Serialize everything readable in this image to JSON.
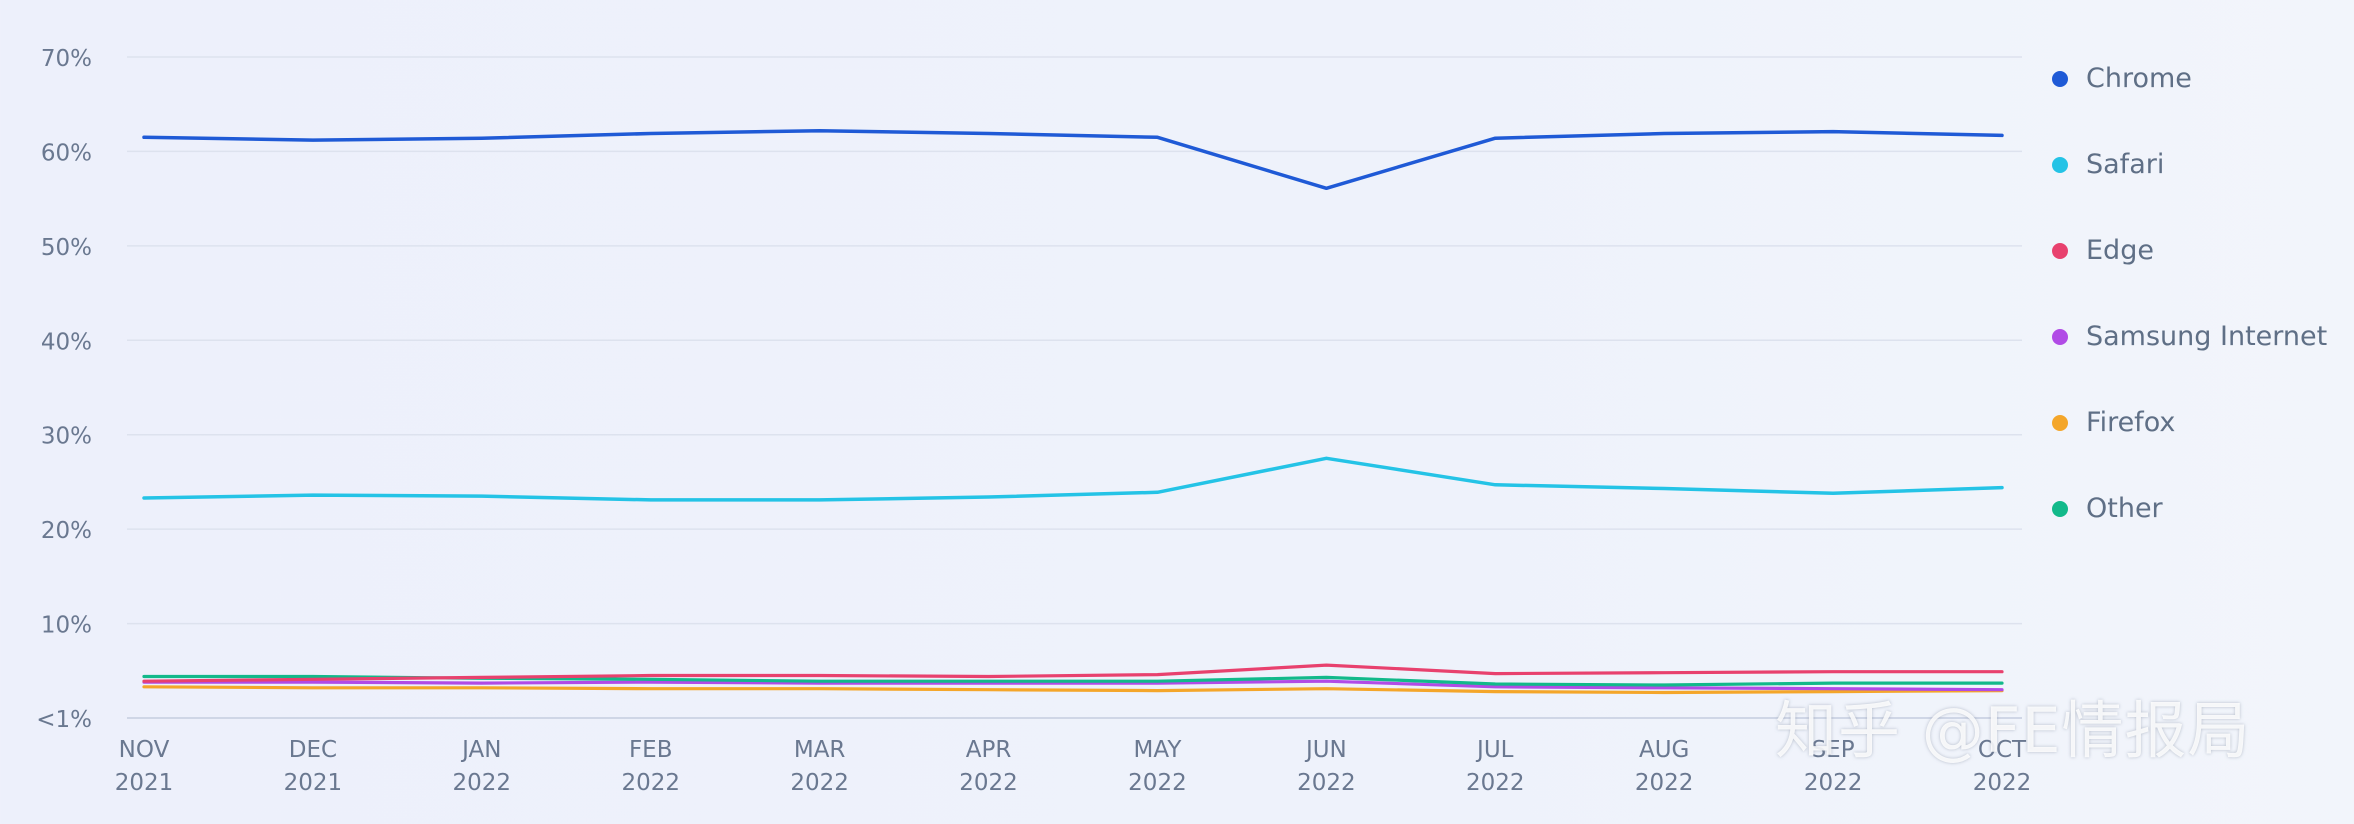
{
  "chart_data": {
    "type": "line",
    "categories": [
      [
        "NOV",
        "2021"
      ],
      [
        "DEC",
        "2021"
      ],
      [
        "JAN",
        "2022"
      ],
      [
        "FEB",
        "2022"
      ],
      [
        "MAR",
        "2022"
      ],
      [
        "APR",
        "2022"
      ],
      [
        "MAY",
        "2022"
      ],
      [
        "JUN",
        "2022"
      ],
      [
        "JUL",
        "2022"
      ],
      [
        "AUG",
        "2022"
      ],
      [
        "SEP",
        "2022"
      ],
      [
        "OCT",
        "2022"
      ]
    ],
    "y_ticks": [
      {
        "value": 0,
        "label": "<1%"
      },
      {
        "value": 10,
        "label": "10%"
      },
      {
        "value": 20,
        "label": "20%"
      },
      {
        "value": 30,
        "label": "30%"
      },
      {
        "value": 40,
        "label": "40%"
      },
      {
        "value": 50,
        "label": "50%"
      },
      {
        "value": 60,
        "label": "60%"
      },
      {
        "value": 70,
        "label": "70%"
      }
    ],
    "ylim": [
      0,
      70
    ],
    "grid": true,
    "legend_position": "right",
    "series": [
      {
        "name": "Chrome",
        "color": "#1f5ad6",
        "values": [
          61.5,
          61.2,
          61.4,
          61.9,
          62.2,
          61.9,
          61.5,
          56.1,
          61.4,
          61.9,
          62.1,
          61.7
        ]
      },
      {
        "name": "Safari",
        "color": "#24c3e6",
        "values": [
          23.3,
          23.6,
          23.5,
          23.1,
          23.1,
          23.4,
          23.9,
          27.5,
          24.7,
          24.3,
          23.8,
          24.4
        ]
      },
      {
        "name": "Edge",
        "color": "#e8416e",
        "values": [
          3.9,
          4.1,
          4.3,
          4.5,
          4.5,
          4.4,
          4.6,
          5.6,
          4.7,
          4.8,
          4.9,
          4.9
        ]
      },
      {
        "name": "Samsung Internet",
        "color": "#b14be6",
        "values": [
          3.8,
          3.8,
          3.7,
          3.8,
          3.7,
          3.7,
          3.7,
          3.9,
          3.3,
          3.2,
          3.1,
          3.0
        ]
      },
      {
        "name": "Firefox",
        "color": "#f4a62a",
        "values": [
          3.3,
          3.2,
          3.2,
          3.1,
          3.1,
          3.0,
          2.9,
          3.1,
          2.8,
          2.7,
          2.8,
          2.9
        ]
      },
      {
        "name": "Other",
        "color": "#12b98a",
        "values": [
          4.4,
          4.4,
          4.2,
          4.1,
          3.9,
          3.9,
          3.9,
          4.3,
          3.6,
          3.5,
          3.7,
          3.7
        ]
      }
    ]
  },
  "watermark_text": "知乎 @FE情报局"
}
